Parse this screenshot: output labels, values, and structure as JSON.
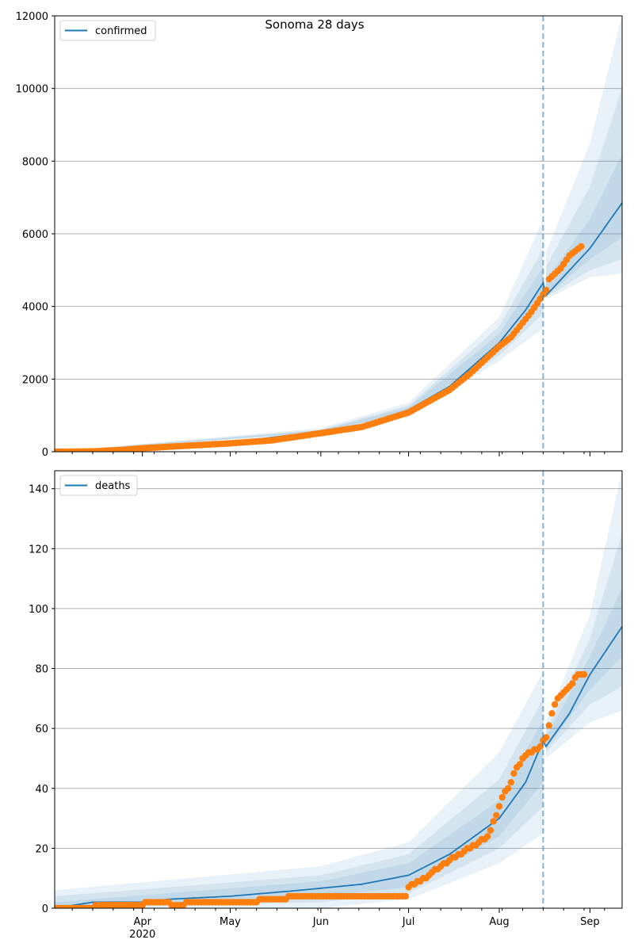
{
  "figure": {
    "title": "Sonoma 28 days"
  },
  "chart_data": [
    {
      "id": "confirmed",
      "type": "line",
      "legend": "confirmed",
      "legend_position": "top-left",
      "grid": "y",
      "ylim": [
        0,
        12000
      ],
      "yticks": [
        0,
        2000,
        4000,
        6000,
        8000,
        10000,
        12000
      ],
      "xlim": [
        "2020-03-02",
        "2020-09-12"
      ],
      "xticks": [
        {
          "date": "2020-04-01",
          "label": "Apr",
          "sublabel": "2020"
        },
        {
          "date": "2020-05-01",
          "label": "May",
          "sublabel": ""
        },
        {
          "date": "2020-06-01",
          "label": "Jun",
          "sublabel": ""
        },
        {
          "date": "2020-07-01",
          "label": "Jul",
          "sublabel": ""
        },
        {
          "date": "2020-08-01",
          "label": "Aug",
          "sublabel": ""
        },
        {
          "date": "2020-09-01",
          "label": "Sep",
          "sublabel": ""
        }
      ],
      "show_xtick_labels": false,
      "forecast_start": "2020-08-16",
      "model": [
        [
          "2020-03-02",
          0
        ],
        [
          "2020-04-01",
          100
        ],
        [
          "2020-05-01",
          250
        ],
        [
          "2020-06-01",
          560
        ],
        [
          "2020-06-15",
          740
        ],
        [
          "2020-07-01",
          1150
        ],
        [
          "2020-07-15",
          1800
        ],
        [
          "2020-08-01",
          3000
        ],
        [
          "2020-08-10",
          3900
        ],
        [
          "2020-08-16",
          4650
        ],
        [
          "2020-08-17",
          4300
        ],
        [
          "2020-09-01",
          5600
        ],
        [
          "2020-09-12",
          6850
        ]
      ],
      "bands": [
        {
          "lower": [
            [
              "2020-03-02",
              0
            ],
            [
              "2020-06-01",
              500
            ],
            [
              "2020-07-01",
              980
            ],
            [
              "2020-08-01",
              2500
            ],
            [
              "2020-08-16",
              3400
            ],
            [
              "2020-08-17",
              4200
            ],
            [
              "2020-09-01",
              4800
            ],
            [
              "2020-09-12",
              4900
            ]
          ],
          "upper": [
            [
              "2020-03-02",
              0
            ],
            [
              "2020-06-01",
              650
            ],
            [
              "2020-07-01",
              1350
            ],
            [
              "2020-08-01",
              3700
            ],
            [
              "2020-08-16",
              6400
            ],
            [
              "2020-08-17",
              5500
            ],
            [
              "2020-09-01",
              8500
            ],
            [
              "2020-09-12",
              12000
            ]
          ]
        },
        {
          "lower": [
            [
              "2020-03-02",
              0
            ],
            [
              "2020-06-01",
              520
            ],
            [
              "2020-07-01",
              1030
            ],
            [
              "2020-08-01",
              2650
            ],
            [
              "2020-08-16",
              3800
            ],
            [
              "2020-08-17",
              4250
            ],
            [
              "2020-09-01",
              5000
            ],
            [
              "2020-09-12",
              5300
            ]
          ],
          "upper": [
            [
              "2020-03-02",
              0
            ],
            [
              "2020-06-01",
              610
            ],
            [
              "2020-07-01",
              1270
            ],
            [
              "2020-08-01",
              3450
            ],
            [
              "2020-08-16",
              5600
            ],
            [
              "2020-08-17",
              5100
            ],
            [
              "2020-09-01",
              7300
            ],
            [
              "2020-09-12",
              10000
            ]
          ]
        },
        {
          "lower": [
            [
              "2020-03-02",
              0
            ],
            [
              "2020-06-01",
              540
            ],
            [
              "2020-07-01",
              1080
            ],
            [
              "2020-08-01",
              2800
            ],
            [
              "2020-08-16",
              4200
            ],
            [
              "2020-08-17",
              4280
            ],
            [
              "2020-09-01",
              5300
            ],
            [
              "2020-09-12",
              5900
            ]
          ],
          "upper": [
            [
              "2020-03-02",
              0
            ],
            [
              "2020-06-01",
              590
            ],
            [
              "2020-07-01",
              1220
            ],
            [
              "2020-08-01",
              3250
            ],
            [
              "2020-08-16",
              5100
            ],
            [
              "2020-08-17",
              4750
            ],
            [
              "2020-09-01",
              6400
            ],
            [
              "2020-09-12",
              8200
            ]
          ]
        }
      ],
      "observed": [
        [
          "2020-03-02",
          0
        ],
        [
          "2020-03-15",
          10
        ],
        [
          "2020-03-25",
          50
        ],
        [
          "2020-04-01",
          95
        ],
        [
          "2020-04-15",
          160
        ],
        [
          "2020-05-01",
          230
        ],
        [
          "2020-05-15",
          310
        ],
        [
          "2020-06-01",
          510
        ],
        [
          "2020-06-15",
          680
        ],
        [
          "2020-07-01",
          1080
        ],
        [
          "2020-07-15",
          1700
        ],
        [
          "2020-07-22",
          2150
        ],
        [
          "2020-08-01",
          2900
        ],
        [
          "2020-08-05",
          3150
        ],
        [
          "2020-08-12",
          3850
        ],
        [
          "2020-08-17",
          4450
        ],
        [
          "2020-08-18",
          4750
        ],
        [
          "2020-08-22",
          5050
        ],
        [
          "2020-08-25",
          5400
        ],
        [
          "2020-08-29",
          5650
        ]
      ],
      "observed_end": "2020-08-29"
    },
    {
      "id": "deaths",
      "type": "line",
      "legend": "deaths",
      "legend_position": "top-left",
      "grid": "y",
      "ylim": [
        0,
        146
      ],
      "yticks": [
        0,
        20,
        40,
        60,
        80,
        100,
        120,
        140
      ],
      "xlim": [
        "2020-03-02",
        "2020-09-12"
      ],
      "xticks": [
        {
          "date": "2020-04-01",
          "label": "Apr",
          "sublabel": "2020"
        },
        {
          "date": "2020-05-01",
          "label": "May",
          "sublabel": ""
        },
        {
          "date": "2020-06-01",
          "label": "Jun",
          "sublabel": ""
        },
        {
          "date": "2020-07-01",
          "label": "Jul",
          "sublabel": ""
        },
        {
          "date": "2020-08-01",
          "label": "Aug",
          "sublabel": ""
        },
        {
          "date": "2020-09-01",
          "label": "Sep",
          "sublabel": ""
        }
      ],
      "show_xtick_labels": true,
      "forecast_start": "2020-08-16",
      "model": [
        [
          "2020-03-02",
          0
        ],
        [
          "2020-03-15",
          2
        ],
        [
          "2020-04-01",
          2
        ],
        [
          "2020-04-10",
          3
        ],
        [
          "2020-05-01",
          4
        ],
        [
          "2020-05-25",
          6
        ],
        [
          "2020-06-15",
          8
        ],
        [
          "2020-07-01",
          11
        ],
        [
          "2020-07-15",
          18
        ],
        [
          "2020-08-01",
          30
        ],
        [
          "2020-08-10",
          42
        ],
        [
          "2020-08-16",
          56
        ],
        [
          "2020-08-17",
          54
        ],
        [
          "2020-08-25",
          65
        ],
        [
          "2020-09-01",
          78
        ],
        [
          "2020-09-12",
          94
        ]
      ],
      "bands": [
        {
          "lower": [
            [
              "2020-03-02",
              0
            ],
            [
              "2020-06-01",
              0
            ],
            [
              "2020-07-01",
              3
            ],
            [
              "2020-08-01",
              15
            ],
            [
              "2020-08-16",
              25
            ],
            [
              "2020-08-17",
              50
            ],
            [
              "2020-09-01",
              62
            ],
            [
              "2020-09-12",
              66
            ]
          ],
          "upper": [
            [
              "2020-03-02",
              6
            ],
            [
              "2020-06-01",
              14
            ],
            [
              "2020-07-01",
              22
            ],
            [
              "2020-08-01",
              52
            ],
            [
              "2020-08-16",
              79
            ],
            [
              "2020-08-17",
              62
            ],
            [
              "2020-09-01",
              98
            ],
            [
              "2020-09-12",
              146
            ]
          ]
        },
        {
          "lower": [
            [
              "2020-03-02",
              0
            ],
            [
              "2020-06-01",
              2
            ],
            [
              "2020-07-01",
              5
            ],
            [
              "2020-08-01",
              20
            ],
            [
              "2020-08-16",
              34
            ],
            [
              "2020-08-17",
              52
            ],
            [
              "2020-09-01",
              68
            ],
            [
              "2020-09-12",
              74
            ]
          ],
          "upper": [
            [
              "2020-03-02",
              4
            ],
            [
              "2020-06-01",
              11
            ],
            [
              "2020-07-01",
              18
            ],
            [
              "2020-08-01",
              43
            ],
            [
              "2020-08-16",
              70
            ],
            [
              "2020-08-17",
              59
            ],
            [
              "2020-09-01",
              90
            ],
            [
              "2020-09-12",
              125
            ]
          ]
        },
        {
          "lower": [
            [
              "2020-03-02",
              0
            ],
            [
              "2020-06-01",
              4
            ],
            [
              "2020-07-01",
              7
            ],
            [
              "2020-08-01",
              24
            ],
            [
              "2020-08-16",
              42
            ],
            [
              "2020-08-17",
              53
            ],
            [
              "2020-09-01",
              73
            ],
            [
              "2020-09-12",
              84
            ]
          ],
          "upper": [
            [
              "2020-03-02",
              2
            ],
            [
              "2020-06-01",
              9
            ],
            [
              "2020-07-01",
              15
            ],
            [
              "2020-08-01",
              36
            ],
            [
              "2020-08-16",
              63
            ],
            [
              "2020-08-17",
              57
            ],
            [
              "2020-09-01",
              84
            ],
            [
              "2020-09-12",
              107
            ]
          ]
        }
      ],
      "observed": [
        [
          "2020-03-02",
          0
        ],
        [
          "2020-03-15",
          0
        ],
        [
          "2020-03-16",
          1
        ],
        [
          "2020-04-01",
          1
        ],
        [
          "2020-04-02",
          2
        ],
        [
          "2020-04-10",
          2
        ],
        [
          "2020-04-11",
          1
        ],
        [
          "2020-04-15",
          1
        ],
        [
          "2020-04-16",
          2
        ],
        [
          "2020-05-10",
          2
        ],
        [
          "2020-05-11",
          3
        ],
        [
          "2020-05-20",
          3
        ],
        [
          "2020-05-21",
          4
        ],
        [
          "2020-06-30",
          4
        ],
        [
          "2020-07-01",
          5
        ],
        [
          "2020-07-01",
          7
        ],
        [
          "2020-07-08",
          11
        ],
        [
          "2020-07-12",
          14
        ],
        [
          "2020-07-15",
          16
        ],
        [
          "2020-07-20",
          19
        ],
        [
          "2020-07-25",
          22
        ],
        [
          "2020-07-28",
          24
        ],
        [
          "2020-07-31",
          31
        ],
        [
          "2020-08-02",
          37
        ],
        [
          "2020-08-05",
          42
        ],
        [
          "2020-08-07",
          47
        ],
        [
          "2020-08-10",
          51
        ],
        [
          "2020-08-15",
          54
        ],
        [
          "2020-08-17",
          57
        ],
        [
          "2020-08-19",
          65
        ],
        [
          "2020-08-21",
          70
        ],
        [
          "2020-08-23",
          72
        ],
        [
          "2020-08-26",
          75
        ],
        [
          "2020-08-28",
          78
        ],
        [
          "2020-08-30",
          78
        ]
      ],
      "observed_end": "2020-08-30"
    }
  ],
  "colors": {
    "model_line": "#1f77b4",
    "band_fill": "#1f77b4",
    "observed": "#ff7f0e",
    "forecast_line": "#1f77b4",
    "grid": "#b0b0b0",
    "axis": "#000000"
  }
}
